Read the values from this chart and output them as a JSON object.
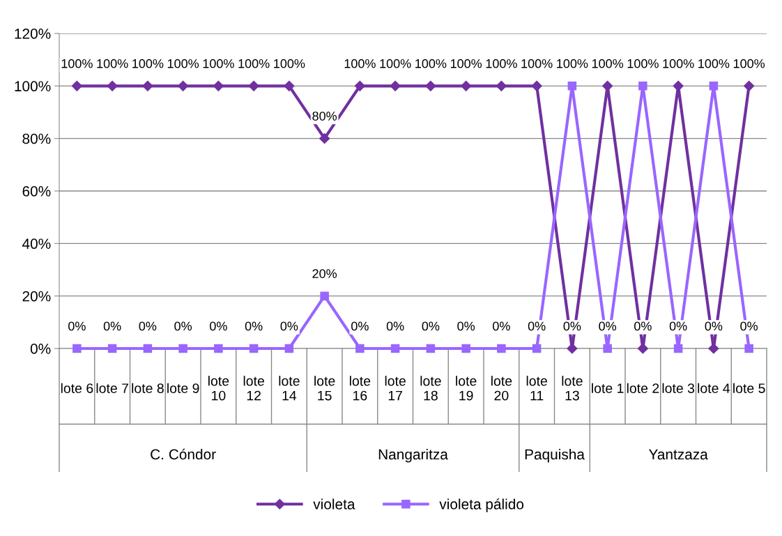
{
  "chart_data": {
    "type": "line",
    "categories": [
      "lote 6",
      "lote 7",
      "lote 8",
      "lote 9",
      "lote 10",
      "lote 12",
      "lote 14",
      "lote 15",
      "lote 16",
      "lote 17",
      "lote 18",
      "lote 19",
      "lote 20",
      "lote 11",
      "lote 13",
      "lote 1",
      "lote 2",
      "lote 3",
      "lote 4",
      "lote 5"
    ],
    "annotations": [
      "C. Cóndor",
      "Nangaritza",
      "Paquisha",
      "Yantzaza"
    ],
    "series": [
      {
        "name": "violeta",
        "color": "#7030a0",
        "marker": "diamond",
        "values": [
          100,
          100,
          100,
          100,
          100,
          100,
          100,
          80,
          100,
          100,
          100,
          100,
          100,
          100,
          0,
          100,
          0,
          100,
          0,
          100
        ],
        "value_labels": [
          "100%",
          "100%",
          "100%",
          "100%",
          "100%",
          "100%",
          "100%",
          "80%",
          "100%",
          "100%",
          "100%",
          "100%",
          "100%",
          "100%",
          "0%",
          "100%",
          "0%",
          "100%",
          "0%",
          "100%"
        ]
      },
      {
        "name": "violeta pálido",
        "color": "#9966ff",
        "marker": "square",
        "values": [
          0,
          0,
          0,
          0,
          0,
          0,
          0,
          20,
          0,
          0,
          0,
          0,
          0,
          0,
          100,
          0,
          100,
          0,
          100,
          0
        ],
        "value_labels": [
          "0%",
          "0%",
          "0%",
          "0%",
          "0%",
          "0%",
          "0%",
          "20%",
          "0%",
          "0%",
          "0%",
          "0%",
          "0%",
          "0%",
          "100%",
          "0%",
          "100%",
          "0%",
          "100%",
          "0%"
        ]
      }
    ],
    "ylim": [
      0,
      120
    ],
    "yticks": [
      {
        "value": 0,
        "label": "0%"
      },
      {
        "value": 20,
        "label": "20%"
      },
      {
        "value": 40,
        "label": "40%"
      },
      {
        "value": 60,
        "label": "60%"
      },
      {
        "value": 80,
        "label": "80%"
      },
      {
        "value": 100,
        "label": "100%"
      },
      {
        "value": 120,
        "label": "120%"
      }
    ],
    "grid": "y",
    "legend": "bottom",
    "line_style": "solid"
  }
}
